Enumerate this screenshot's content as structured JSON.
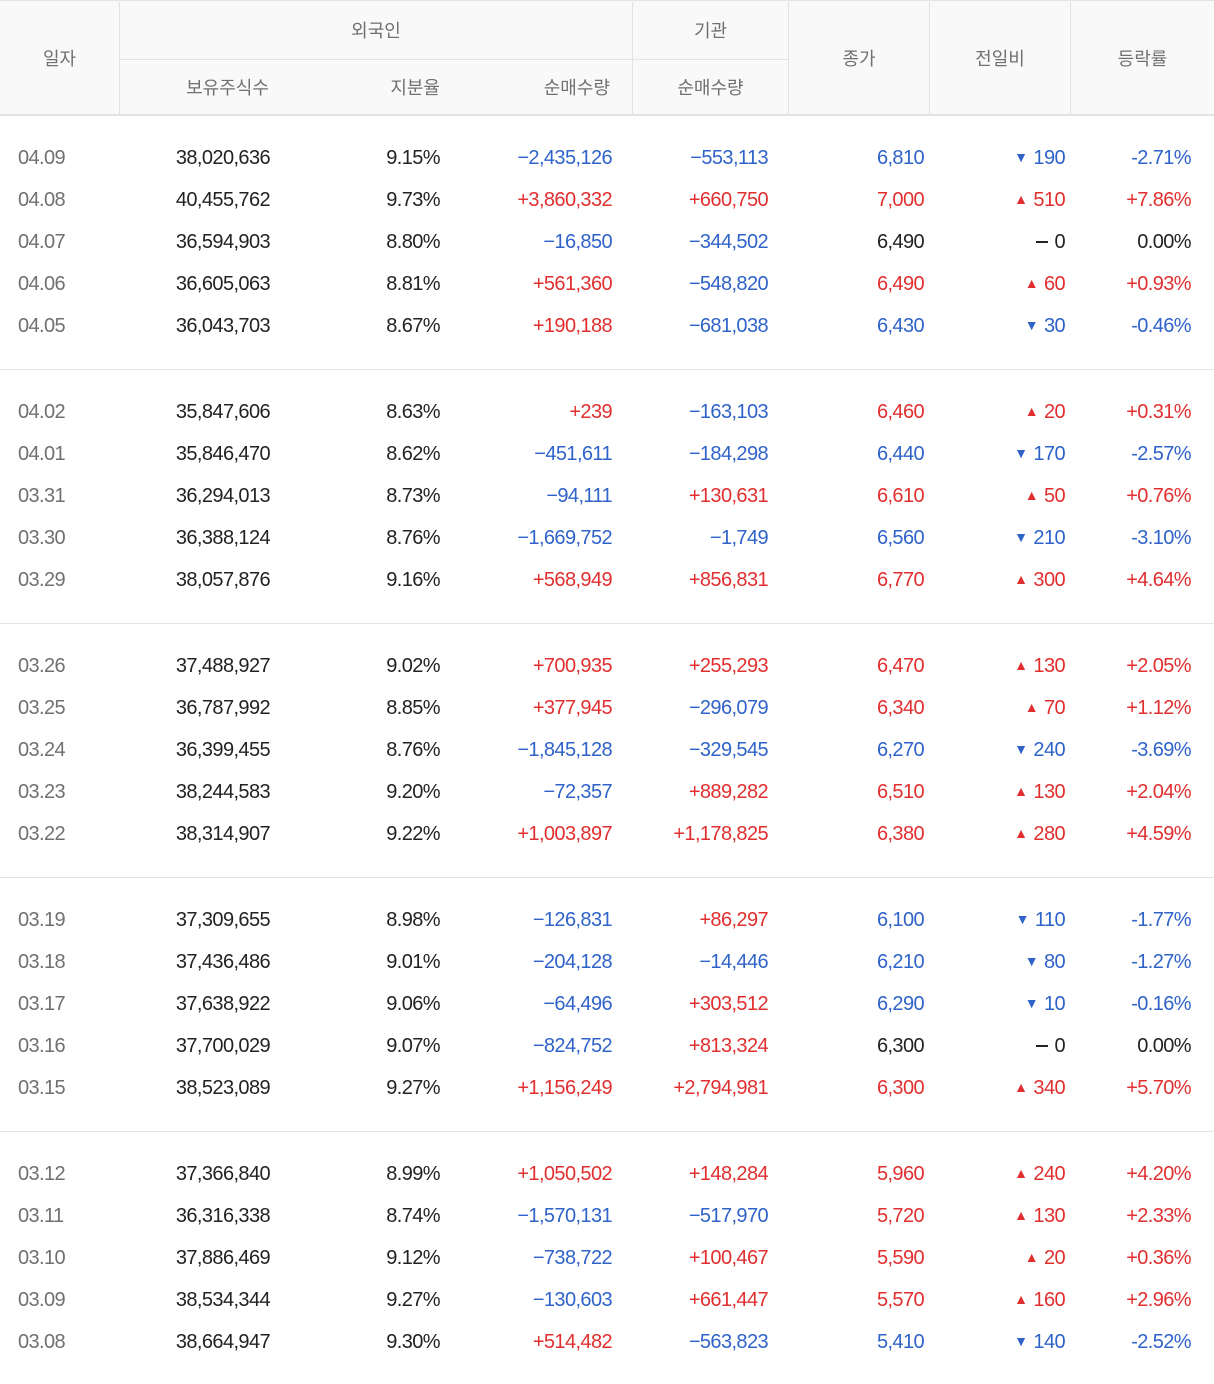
{
  "header": {
    "date": "일자",
    "foreign": "외국인",
    "foreign_holdings": "보유주식수",
    "foreign_ratio": "지분율",
    "foreign_net": "순매수량",
    "institution": "기관",
    "institution_net": "순매수량",
    "close": "종가",
    "change": "전일비",
    "rate": "등락률"
  },
  "colors": {
    "up": "#e12f2f",
    "down": "#2f63c9",
    "flat": "#222222"
  },
  "groups": [
    {
      "rows": [
        {
          "date": "04.09",
          "holdings": "38,020,636",
          "ratio": "9.15%",
          "foreign_net": "−2,435,126",
          "inst_net": "−553,113",
          "close": "6,810",
          "dir": "down",
          "change": "190",
          "rate": "-2.71%"
        },
        {
          "date": "04.08",
          "holdings": "40,455,762",
          "ratio": "9.73%",
          "foreign_net": "+3,860,332",
          "inst_net": "+660,750",
          "close": "7,000",
          "dir": "up",
          "change": "510",
          "rate": "+7.86%"
        },
        {
          "date": "04.07",
          "holdings": "36,594,903",
          "ratio": "8.80%",
          "foreign_net": "−16,850",
          "inst_net": "−344,502",
          "close": "6,490",
          "dir": "flat",
          "change": "0",
          "rate": "0.00%"
        },
        {
          "date": "04.06",
          "holdings": "36,605,063",
          "ratio": "8.81%",
          "foreign_net": "+561,360",
          "inst_net": "−548,820",
          "close": "6,490",
          "dir": "up",
          "change": "60",
          "rate": "+0.93%"
        },
        {
          "date": "04.05",
          "holdings": "36,043,703",
          "ratio": "8.67%",
          "foreign_net": "+190,188",
          "inst_net": "−681,038",
          "close": "6,430",
          "dir": "down",
          "change": "30",
          "rate": "-0.46%"
        }
      ]
    },
    {
      "rows": [
        {
          "date": "04.02",
          "holdings": "35,847,606",
          "ratio": "8.63%",
          "foreign_net": "+239",
          "inst_net": "−163,103",
          "close": "6,460",
          "dir": "up",
          "change": "20",
          "rate": "+0.31%"
        },
        {
          "date": "04.01",
          "holdings": "35,846,470",
          "ratio": "8.62%",
          "foreign_net": "−451,611",
          "inst_net": "−184,298",
          "close": "6,440",
          "dir": "down",
          "change": "170",
          "rate": "-2.57%"
        },
        {
          "date": "03.31",
          "holdings": "36,294,013",
          "ratio": "8.73%",
          "foreign_net": "−94,111",
          "inst_net": "+130,631",
          "close": "6,610",
          "dir": "up",
          "change": "50",
          "rate": "+0.76%"
        },
        {
          "date": "03.30",
          "holdings": "36,388,124",
          "ratio": "8.76%",
          "foreign_net": "−1,669,752",
          "inst_net": "−1,749",
          "close": "6,560",
          "dir": "down",
          "change": "210",
          "rate": "-3.10%"
        },
        {
          "date": "03.29",
          "holdings": "38,057,876",
          "ratio": "9.16%",
          "foreign_net": "+568,949",
          "inst_net": "+856,831",
          "close": "6,770",
          "dir": "up",
          "change": "300",
          "rate": "+4.64%"
        }
      ]
    },
    {
      "rows": [
        {
          "date": "03.26",
          "holdings": "37,488,927",
          "ratio": "9.02%",
          "foreign_net": "+700,935",
          "inst_net": "+255,293",
          "close": "6,470",
          "dir": "up",
          "change": "130",
          "rate": "+2.05%"
        },
        {
          "date": "03.25",
          "holdings": "36,787,992",
          "ratio": "8.85%",
          "foreign_net": "+377,945",
          "inst_net": "−296,079",
          "close": "6,340",
          "dir": "up",
          "change": "70",
          "rate": "+1.12%"
        },
        {
          "date": "03.24",
          "holdings": "36,399,455",
          "ratio": "8.76%",
          "foreign_net": "−1,845,128",
          "inst_net": "−329,545",
          "close": "6,270",
          "dir": "down",
          "change": "240",
          "rate": "-3.69%"
        },
        {
          "date": "03.23",
          "holdings": "38,244,583",
          "ratio": "9.20%",
          "foreign_net": "−72,357",
          "inst_net": "+889,282",
          "close": "6,510",
          "dir": "up",
          "change": "130",
          "rate": "+2.04%"
        },
        {
          "date": "03.22",
          "holdings": "38,314,907",
          "ratio": "9.22%",
          "foreign_net": "+1,003,897",
          "inst_net": "+1,178,825",
          "close": "6,380",
          "dir": "up",
          "change": "280",
          "rate": "+4.59%"
        }
      ]
    },
    {
      "rows": [
        {
          "date": "03.19",
          "holdings": "37,309,655",
          "ratio": "8.98%",
          "foreign_net": "−126,831",
          "inst_net": "+86,297",
          "close": "6,100",
          "dir": "down",
          "change": "110",
          "rate": "-1.77%"
        },
        {
          "date": "03.18",
          "holdings": "37,436,486",
          "ratio": "9.01%",
          "foreign_net": "−204,128",
          "inst_net": "−14,446",
          "close": "6,210",
          "dir": "down",
          "change": "80",
          "rate": "-1.27%"
        },
        {
          "date": "03.17",
          "holdings": "37,638,922",
          "ratio": "9.06%",
          "foreign_net": "−64,496",
          "inst_net": "+303,512",
          "close": "6,290",
          "dir": "down",
          "change": "10",
          "rate": "-0.16%"
        },
        {
          "date": "03.16",
          "holdings": "37,700,029",
          "ratio": "9.07%",
          "foreign_net": "−824,752",
          "inst_net": "+813,324",
          "close": "6,300",
          "dir": "flat",
          "change": "0",
          "rate": "0.00%"
        },
        {
          "date": "03.15",
          "holdings": "38,523,089",
          "ratio": "9.27%",
          "foreign_net": "+1,156,249",
          "inst_net": "+2,794,981",
          "close": "6,300",
          "dir": "up",
          "change": "340",
          "rate": "+5.70%"
        }
      ]
    },
    {
      "rows": [
        {
          "date": "03.12",
          "holdings": "37,366,840",
          "ratio": "8.99%",
          "foreign_net": "+1,050,502",
          "inst_net": "+148,284",
          "close": "5,960",
          "dir": "up",
          "change": "240",
          "rate": "+4.20%"
        },
        {
          "date": "03.11",
          "holdings": "36,316,338",
          "ratio": "8.74%",
          "foreign_net": "−1,570,131",
          "inst_net": "−517,970",
          "close": "5,720",
          "dir": "up",
          "change": "130",
          "rate": "+2.33%"
        },
        {
          "date": "03.10",
          "holdings": "37,886,469",
          "ratio": "9.12%",
          "foreign_net": "−738,722",
          "inst_net": "+100,467",
          "close": "5,590",
          "dir": "up",
          "change": "20",
          "rate": "+0.36%"
        },
        {
          "date": "03.09",
          "holdings": "38,534,344",
          "ratio": "9.27%",
          "foreign_net": "−130,603",
          "inst_net": "+661,447",
          "close": "5,570",
          "dir": "up",
          "change": "160",
          "rate": "+2.96%"
        },
        {
          "date": "03.08",
          "holdings": "38,664,947",
          "ratio": "9.30%",
          "foreign_net": "+514,482",
          "inst_net": "−563,823",
          "close": "5,410",
          "dir": "down",
          "change": "140",
          "rate": "-2.52%"
        }
      ]
    }
  ]
}
